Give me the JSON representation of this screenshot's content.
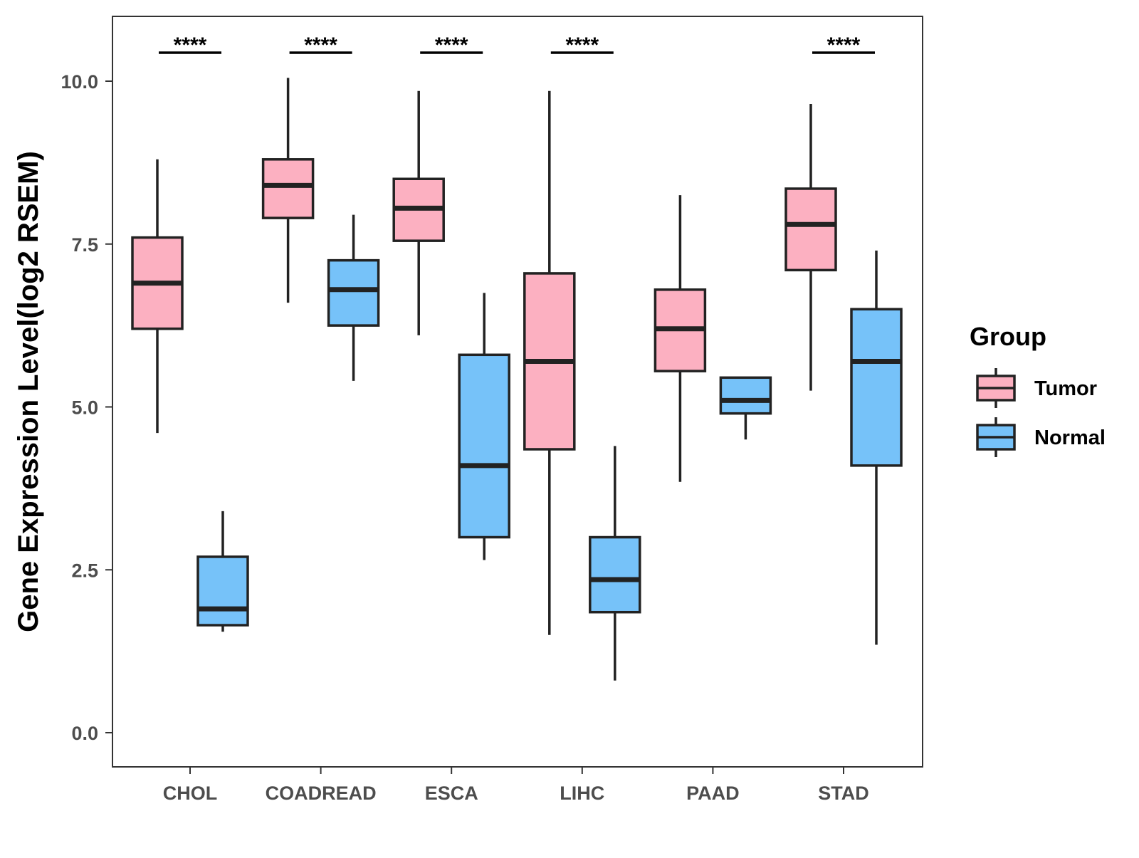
{
  "chart_data": {
    "type": "boxplot",
    "title": "",
    "xlabel": "",
    "ylabel": "Gene Expression Level(log2 RSEM)",
    "ylim": [
      -0.5,
      11.0
    ],
    "yticks": [
      0.0,
      2.5,
      5.0,
      7.5,
      10.0
    ],
    "ytick_labels": [
      "0.0",
      "2.5",
      "5.0",
      "7.5",
      "10.0"
    ],
    "grid": false,
    "categories": [
      "CHOL",
      "COADREAD",
      "ESCA",
      "LIHC",
      "PAAD",
      "STAD"
    ],
    "legend": {
      "title": "Group",
      "position": "right",
      "entries": [
        "Tumor",
        "Normal"
      ]
    },
    "series": [
      {
        "name": "Tumor",
        "color": "#FCB0C1",
        "boxes": [
          {
            "whisker_low": 4.6,
            "q1": 6.2,
            "median": 6.9,
            "q3": 7.6,
            "whisker_high": 8.8
          },
          {
            "whisker_low": 6.6,
            "q1": 7.9,
            "median": 8.4,
            "q3": 8.8,
            "whisker_high": 10.05
          },
          {
            "whisker_low": 6.1,
            "q1": 7.55,
            "median": 8.05,
            "q3": 8.5,
            "whisker_high": 9.85
          },
          {
            "whisker_low": 1.5,
            "q1": 4.35,
            "median": 5.7,
            "q3": 7.05,
            "whisker_high": 9.85
          },
          {
            "whisker_low": 3.85,
            "q1": 5.55,
            "median": 6.2,
            "q3": 6.8,
            "whisker_high": 8.25
          },
          {
            "whisker_low": 5.25,
            "q1": 7.1,
            "median": 7.8,
            "q3": 8.35,
            "whisker_high": 9.65
          }
        ]
      },
      {
        "name": "Normal",
        "color": "#76C2F9",
        "boxes": [
          {
            "whisker_low": 1.55,
            "q1": 1.65,
            "median": 1.9,
            "q3": 2.7,
            "whisker_high": 3.4
          },
          {
            "whisker_low": 5.4,
            "q1": 6.25,
            "median": 6.8,
            "q3": 7.25,
            "whisker_high": 7.95
          },
          {
            "whisker_low": 2.65,
            "q1": 3.0,
            "median": 4.1,
            "q3": 5.8,
            "whisker_high": 6.75
          },
          {
            "whisker_low": 0.8,
            "q1": 1.85,
            "median": 2.35,
            "q3": 3.0,
            "whisker_high": 4.4
          },
          {
            "whisker_low": 4.5,
            "q1": 4.9,
            "median": 5.1,
            "q3": 5.45,
            "whisker_high": 5.45
          },
          {
            "whisker_low": 1.35,
            "q1": 4.1,
            "median": 5.7,
            "q3": 6.5,
            "whisker_high": 7.4
          }
        ]
      }
    ],
    "annotations": [
      {
        "category": "CHOL",
        "label": "****"
      },
      {
        "category": "COADREAD",
        "label": "****"
      },
      {
        "category": "ESCA",
        "label": "****"
      },
      {
        "category": "LIHC",
        "label": "****"
      },
      {
        "category": "STAD",
        "label": "****"
      }
    ]
  }
}
